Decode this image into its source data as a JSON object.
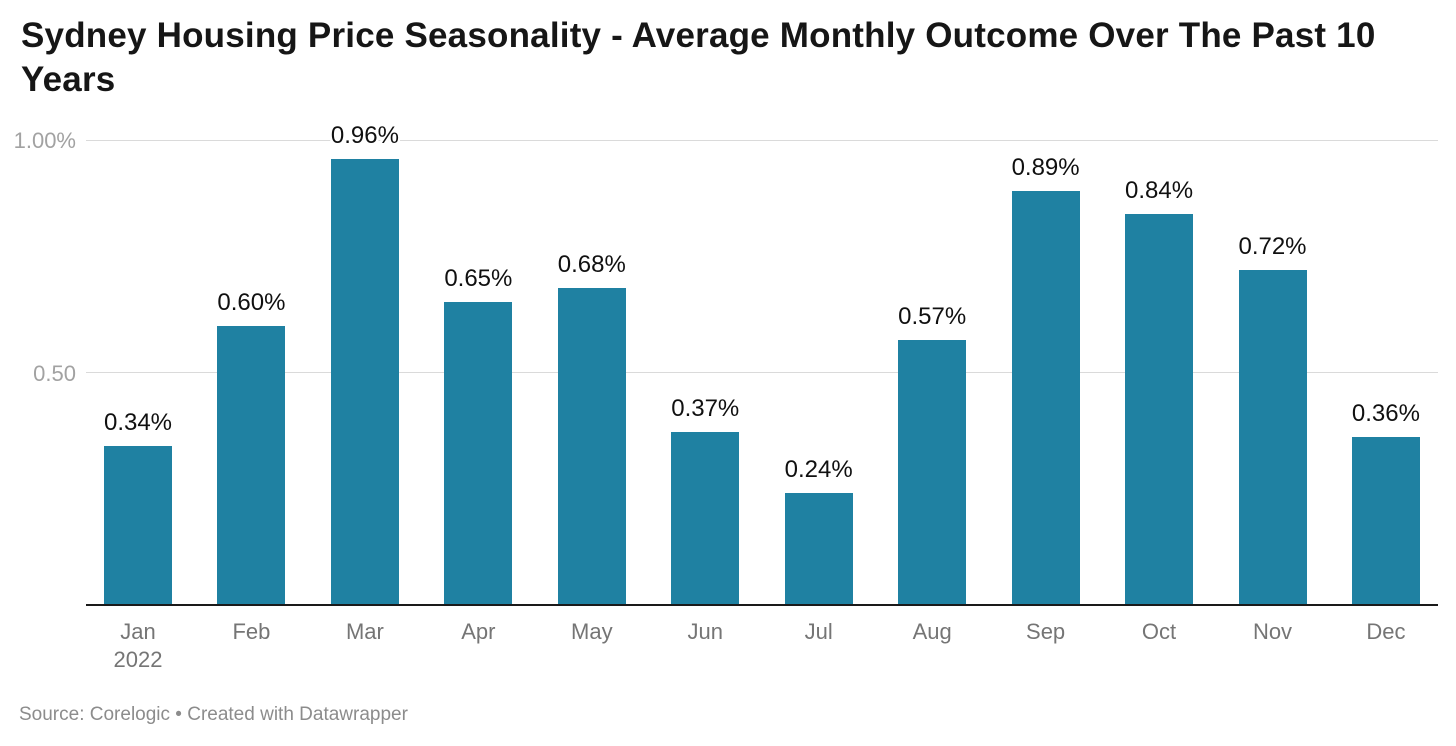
{
  "title": {
    "text": "Sydney Housing Price Seasonality - Average Monthly Outcome Over The Past 10 Years",
    "lines": [
      "Sydney Housing Price Seasonality - Average Monthly Outcome Over The Past 10",
      "Years"
    ]
  },
  "footer": {
    "text": "Source: Corelogic • Created with Datawrapper"
  },
  "colors": {
    "bar": "#1f81a2",
    "grid": "#dadada",
    "axis": "#1a1a1a",
    "title_text": "#161616",
    "value_label": "#101010",
    "x_label": "#757575",
    "y_label": "#a2a2a2",
    "footer_text": "#8c8c8c",
    "background": "#ffffff"
  },
  "chart_data": {
    "type": "bar",
    "title": "Sydney Housing Price Seasonality - Average Monthly Outcome Over The Past 10 Years",
    "categories": [
      "Jan",
      "Feb",
      "Mar",
      "Apr",
      "May",
      "Jun",
      "Jul",
      "Aug",
      "Sep",
      "Oct",
      "Nov",
      "Dec"
    ],
    "x_first_sublabel": "2022",
    "values": [
      0.34,
      0.6,
      0.96,
      0.65,
      0.68,
      0.37,
      0.24,
      0.57,
      0.89,
      0.84,
      0.72,
      0.36
    ],
    "value_labels": [
      "0.34%",
      "0.60%",
      "0.96%",
      "0.65%",
      "0.68%",
      "0.37%",
      "0.24%",
      "0.57%",
      "0.89%",
      "0.84%",
      "0.72%",
      "0.36%"
    ],
    "unit": "%",
    "xlabel": "",
    "ylabel": "",
    "ylim": [
      0,
      1.0
    ],
    "y_ticks": [
      {
        "value": 1.0,
        "label": "1.00%"
      },
      {
        "value": 0.5,
        "label": "0.50"
      }
    ],
    "grid": true,
    "legend": "none",
    "source": "Corelogic",
    "attribution": "Created with Datawrapper"
  }
}
